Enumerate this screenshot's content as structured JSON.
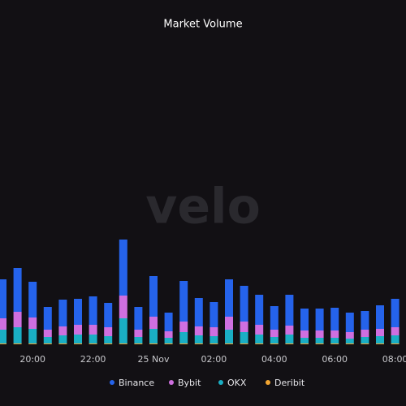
{
  "chart_data": {
    "type": "bar",
    "stacked": true,
    "title": "Market Volume",
    "watermark": "velo",
    "categories": [
      null,
      null,
      "20:00",
      null,
      null,
      null,
      "22:00",
      null,
      null,
      null,
      "25 Nov",
      null,
      null,
      null,
      "02:00",
      null,
      null,
      null,
      "04:00",
      null,
      null,
      null,
      "06:00",
      null,
      null,
      null,
      "08:00"
    ],
    "series": [
      {
        "name": "Binance",
        "color": "#2563eb",
        "values": [
          48,
          54,
          44,
          28,
          33,
          32,
          35,
          30,
          69,
          28,
          50,
          23,
          50,
          35,
          31,
          46,
          44,
          37,
          29,
          38,
          27,
          27,
          28,
          24,
          23,
          29,
          35
        ]
      },
      {
        "name": "Bybit",
        "color": "#cf6fe0",
        "values": [
          14,
          19,
          14,
          9,
          11,
          12,
          12,
          11,
          28,
          9,
          15,
          8,
          13,
          11,
          11,
          16,
          13,
          12,
          9,
          11,
          9,
          9,
          9,
          8,
          9,
          9,
          10
        ]
      },
      {
        "name": "OKX",
        "color": "#1aaec4",
        "values": [
          17,
          20,
          18,
          8,
          10,
          11,
          11,
          9,
          31,
          8,
          18,
          7,
          14,
          10,
          9,
          17,
          14,
          11,
          8,
          11,
          7,
          7,
          7,
          6,
          8,
          9,
          10
        ]
      },
      {
        "name": "Deribit",
        "color": "#f2a531",
        "values": [
          1,
          1,
          1,
          1,
          1,
          1,
          1,
          1,
          1,
          1,
          1,
          1,
          1,
          1,
          1,
          1,
          1,
          1,
          1,
          1,
          1,
          1,
          1,
          1,
          1,
          1,
          1
        ]
      }
    ]
  }
}
